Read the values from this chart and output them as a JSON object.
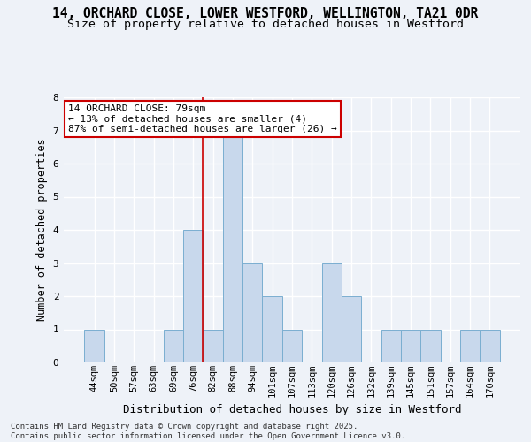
{
  "title_line1": "14, ORCHARD CLOSE, LOWER WESTFORD, WELLINGTON, TA21 0DR",
  "title_line2": "Size of property relative to detached houses in Westford",
  "xlabel": "Distribution of detached houses by size in Westford",
  "ylabel": "Number of detached properties",
  "categories": [
    "44sqm",
    "50sqm",
    "57sqm",
    "63sqm",
    "69sqm",
    "76sqm",
    "82sqm",
    "88sqm",
    "94sqm",
    "101sqm",
    "107sqm",
    "113sqm",
    "120sqm",
    "126sqm",
    "132sqm",
    "139sqm",
    "145sqm",
    "151sqm",
    "157sqm",
    "164sqm",
    "170sqm"
  ],
  "values": [
    1,
    0,
    0,
    0,
    1,
    4,
    1,
    7,
    3,
    2,
    1,
    0,
    3,
    2,
    0,
    1,
    1,
    1,
    0,
    1,
    1
  ],
  "bar_color": "#c8d8ec",
  "bar_edge_color": "#7aaed0",
  "red_line_index": 5.5,
  "annotation_title": "14 ORCHARD CLOSE: 79sqm",
  "annotation_line1": "← 13% of detached houses are smaller (4)",
  "annotation_line2": "87% of semi-detached houses are larger (26) →",
  "annotation_box_facecolor": "#ffffff",
  "annotation_box_edgecolor": "#cc0000",
  "ylim": [
    0,
    8
  ],
  "yticks": [
    0,
    1,
    2,
    3,
    4,
    5,
    6,
    7,
    8
  ],
  "footer_line1": "Contains HM Land Registry data © Crown copyright and database right 2025.",
  "footer_line2": "Contains public sector information licensed under the Open Government Licence v3.0.",
  "bg_color": "#eef2f8",
  "grid_color": "#ffffff",
  "title_fontsize": 10.5,
  "subtitle_fontsize": 9.5,
  "tick_fontsize": 7.5,
  "ylabel_fontsize": 8.5,
  "xlabel_fontsize": 9,
  "footer_fontsize": 6.5,
  "annotation_fontsize": 8
}
